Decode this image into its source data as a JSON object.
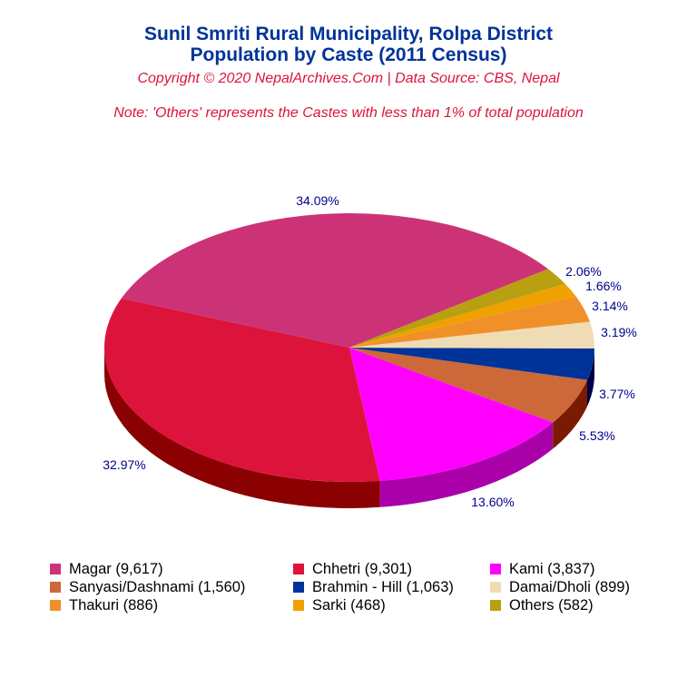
{
  "chart_data": {
    "type": "pie",
    "style": "3d",
    "title": "Sunil Smriti Rural Municipality, Rolpa District",
    "subtitle": "Population by Caste (2011 Census)",
    "copyright": "Copyright © 2020 NepalArchives.Com | Data Source: CBS, Nepal",
    "note": "Note: 'Others' represents the Castes with less than 1% of total population",
    "legend_position": "bottom",
    "slices": [
      {
        "label": "Magar",
        "value": 9617,
        "percent_label": "34.09%",
        "legend": "Magar (9,617)",
        "color": "#CC3377",
        "side": "#8B1A4A"
      },
      {
        "label": "Chhetri",
        "value": 9301,
        "percent_label": "32.97%",
        "legend": "Chhetri (9,301)",
        "color": "#DC143C",
        "side": "#8B0000"
      },
      {
        "label": "Kami",
        "value": 3837,
        "percent_label": "13.60%",
        "legend": "Kami (3,837)",
        "color": "#FF00FF",
        "side": "#AA00AA"
      },
      {
        "label": "Sanyasi/Dashnami",
        "value": 1560,
        "percent_label": "5.53%",
        "legend": "Sanyasi/Dashnami (1,560)",
        "color": "#CD6839",
        "side": "#7A1A00"
      },
      {
        "label": "Brahmin - Hill",
        "value": 1063,
        "percent_label": "3.77%",
        "legend": "Brahmin - Hill (1,063)",
        "color": "#003399",
        "side": "#000044"
      },
      {
        "label": "Damai/Dholi",
        "value": 899,
        "percent_label": "3.19%",
        "legend": "Damai/Dholi (899)",
        "color": "#F0DCB4",
        "side": "#A08C64"
      },
      {
        "label": "Thakuri",
        "value": 886,
        "percent_label": "3.14%",
        "legend": "Thakuri (886)",
        "color": "#F09028",
        "side": "#A05010"
      },
      {
        "label": "Sarki",
        "value": 468,
        "percent_label": "1.66%",
        "legend": "Sarki (468)",
        "color": "#F0A000",
        "side": "#A06000"
      },
      {
        "label": "Others",
        "value": 582,
        "percent_label": "2.06%",
        "legend": "Others (582)",
        "color": "#B8A010",
        "side": "#706000"
      }
    ],
    "label_color": "#00008B"
  }
}
